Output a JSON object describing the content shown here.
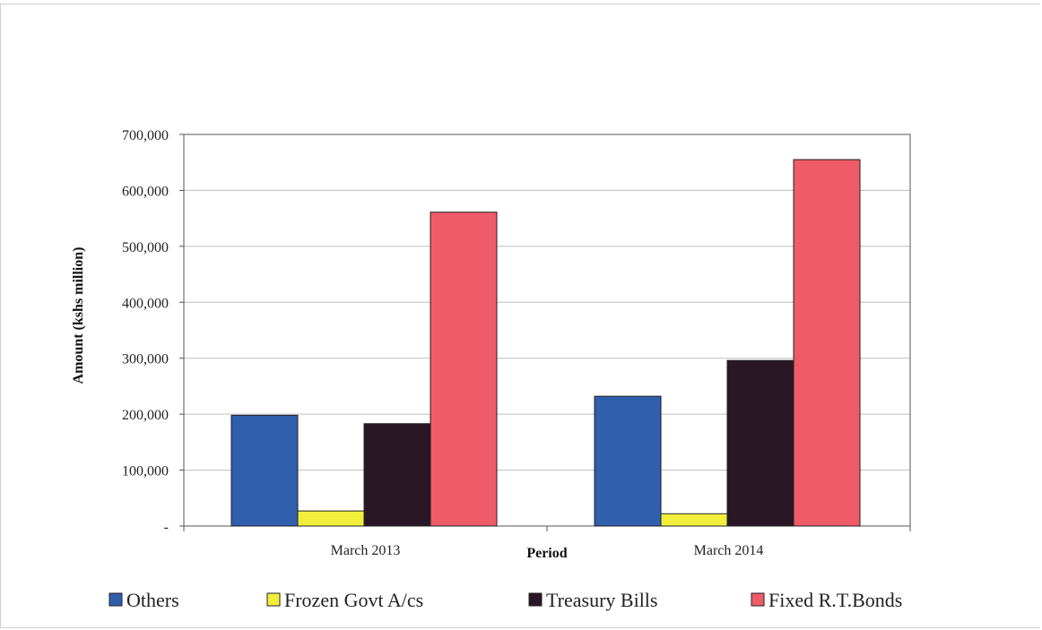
{
  "chart_data": {
    "type": "bar",
    "categories": [
      "March 2013",
      "March 2014"
    ],
    "series": [
      {
        "name": "Others",
        "values": [
          198000,
          232000
        ],
        "color": "#2f5fad"
      },
      {
        "name": "Frozen Govt A/cs",
        "values": [
          27000,
          22000
        ],
        "color": "#f2ee3c"
      },
      {
        "name": "Treasury Bills",
        "values": [
          183000,
          296000
        ],
        "color": "#2a1726"
      },
      {
        "name": "Fixed R.T.Bonds",
        "values": [
          561000,
          655000
        ],
        "color": "#ef5b68"
      }
    ],
    "xlabel": "Period",
    "ylabel": "Amount (kshs million)",
    "ylim": [
      0,
      700000
    ],
    "yticks": [
      {
        "value": 0,
        "label": "-"
      },
      {
        "value": 100000,
        "label": "100,000"
      },
      {
        "value": 200000,
        "label": "200,000"
      },
      {
        "value": 300000,
        "label": "300,000"
      },
      {
        "value": 400000,
        "label": "400,000"
      },
      {
        "value": 500000,
        "label": "500,000"
      },
      {
        "value": 600000,
        "label": "600,000"
      },
      {
        "value": 700000,
        "label": "700,000"
      }
    ],
    "grid": true,
    "legend": "bottom"
  }
}
